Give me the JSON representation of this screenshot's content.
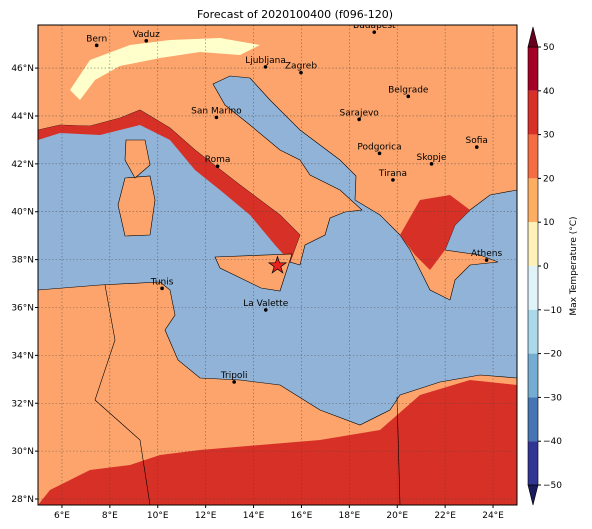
{
  "map": {
    "title": "Forecast of 2020100400 (f096-120)",
    "lon_range": [
      5,
      25
    ],
    "lat_range": [
      27.75,
      47.8
    ],
    "lon_ticks": [
      {
        "value": 6,
        "label": "6°E"
      },
      {
        "value": 8,
        "label": "8°E"
      },
      {
        "value": 10,
        "label": "10°E"
      },
      {
        "value": 12,
        "label": "12°E"
      },
      {
        "value": 14,
        "label": "14°E"
      },
      {
        "value": 16,
        "label": "16°E"
      },
      {
        "value": 18,
        "label": "18°E"
      },
      {
        "value": 20,
        "label": "20°E"
      },
      {
        "value": 22,
        "label": "22°E"
      },
      {
        "value": 24,
        "label": "24°E"
      }
    ],
    "lat_ticks": [
      {
        "value": 28,
        "label": "28°N"
      },
      {
        "value": 30,
        "label": "30°N"
      },
      {
        "value": 32,
        "label": "32°N"
      },
      {
        "value": 34,
        "label": "34°N"
      },
      {
        "value": 36,
        "label": "36°N"
      },
      {
        "value": 38,
        "label": "38°N"
      },
      {
        "value": 40,
        "label": "40°N"
      },
      {
        "value": 42,
        "label": "42°N"
      },
      {
        "value": 44,
        "label": "44°N"
      },
      {
        "value": 46,
        "label": "46°N"
      }
    ],
    "cities": [
      {
        "name": "Bern",
        "lon": 7.45,
        "lat": 46.95
      },
      {
        "name": "Vaduz",
        "lon": 9.52,
        "lat": 47.14
      },
      {
        "name": "Budapest",
        "lon": 19.04,
        "lat": 47.5
      },
      {
        "name": "Ljubljana",
        "lon": 14.5,
        "lat": 46.05
      },
      {
        "name": "Zagreb",
        "lon": 15.98,
        "lat": 45.81
      },
      {
        "name": "Belgrade",
        "lon": 20.46,
        "lat": 44.82
      },
      {
        "name": "San Marino",
        "lon": 12.45,
        "lat": 43.94
      },
      {
        "name": "Sarajevo",
        "lon": 18.41,
        "lat": 43.86
      },
      {
        "name": "Sofia",
        "lon": 23.32,
        "lat": 42.7
      },
      {
        "name": "Podgorica",
        "lon": 19.26,
        "lat": 42.44
      },
      {
        "name": "Skopje",
        "lon": 21.43,
        "lat": 42.0
      },
      {
        "name": "Roma",
        "lon": 12.5,
        "lat": 41.9
      },
      {
        "name": "Tirana",
        "lon": 19.82,
        "lat": 41.33
      },
      {
        "name": "Athens",
        "lon": 23.73,
        "lat": 37.98
      },
      {
        "name": "Tunis",
        "lon": 10.18,
        "lat": 36.8
      },
      {
        "name": "La Valette",
        "lon": 14.51,
        "lat": 35.9
      },
      {
        "name": "Tripoli",
        "lon": 13.19,
        "lat": 32.89
      }
    ],
    "star": {
      "lon": 15.0,
      "lat": 37.75
    },
    "colorbar": {
      "label": "Max Temperature (°C)",
      "range": [
        -50,
        50
      ],
      "ticks": [
        50,
        40,
        30,
        20,
        10,
        0,
        {
          "value": -10,
          "label": "−10"
        },
        {
          "value": -20,
          "label": "−20"
        },
        {
          "value": -30,
          "label": "−30"
        },
        {
          "value": -40,
          "label": "−40"
        },
        {
          "value": -50,
          "label": "−50"
        }
      ],
      "bands": [
        {
          "from": 40,
          "to": 50,
          "color": "#a50026"
        },
        {
          "from": 30,
          "to": 40,
          "color": "#d73027"
        },
        {
          "from": 20,
          "to": 30,
          "color": "#f46d43"
        },
        {
          "from": 10,
          "to": 20,
          "color": "#fdae61"
        },
        {
          "from": 0,
          "to": 10,
          "color": "#fff2b8"
        },
        {
          "from": -10,
          "to": 0,
          "color": "#e0f3f8"
        },
        {
          "from": -20,
          "to": -10,
          "color": "#abd9e9"
        },
        {
          "from": -30,
          "to": -20,
          "color": "#74add1"
        },
        {
          "from": -40,
          "to": -30,
          "color": "#4575b4"
        },
        {
          "from": -50,
          "to": -40,
          "color": "#313695"
        }
      ],
      "over_color": "#67001f",
      "under_color": "#1a1a5e"
    }
  }
}
